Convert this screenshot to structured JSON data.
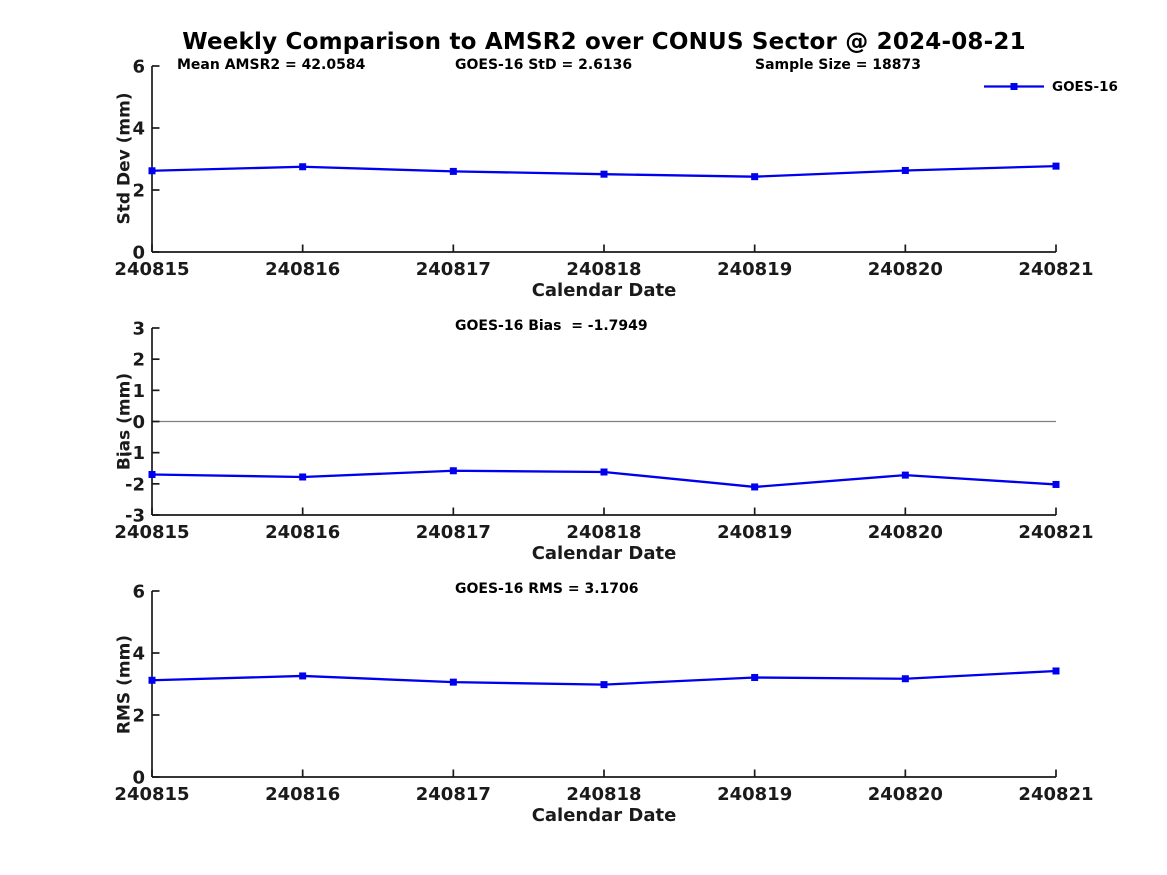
{
  "figure_title": "Weekly Comparison to AMSR2 over CONUS Sector @ 2024-08-21",
  "accent_color": "#0000EE",
  "axis_color": "#1a1a1a",
  "zero_line_color": "#808080",
  "chart_data": [
    {
      "type": "line",
      "name": "std-dev",
      "title": "Weekly Comparison to AMSR2 over CONUS Sector @ 2024-08-21",
      "ylabel": "Std Dev (mm)",
      "xlabel": "Calendar Date",
      "categories": [
        "240815",
        "240816",
        "240817",
        "240818",
        "240819",
        "240820",
        "240821"
      ],
      "series": [
        {
          "name": "GOES-16",
          "color": "#0000EE",
          "marker": "square",
          "values": [
            2.62,
            2.75,
            2.6,
            2.51,
            2.43,
            2.63,
            2.77
          ]
        }
      ],
      "ylim": [
        0,
        6
      ],
      "yticks": [
        0,
        2,
        4,
        6
      ],
      "grid": false,
      "zero_line": false,
      "stats": [
        "Mean AMSR2 = 42.0584",
        "GOES-16 StD = 2.6136",
        "Sample Size = 18873"
      ],
      "legend": {
        "label": "GOES-16",
        "position": "top-right"
      }
    },
    {
      "type": "line",
      "name": "bias",
      "title": "",
      "ylabel": "Bias (mm)",
      "xlabel": "Calendar Date",
      "categories": [
        "240815",
        "240816",
        "240817",
        "240818",
        "240819",
        "240820",
        "240821"
      ],
      "series": [
        {
          "name": "GOES-16",
          "color": "#0000EE",
          "marker": "square",
          "values": [
            -1.7,
            -1.78,
            -1.58,
            -1.62,
            -2.1,
            -1.72,
            -2.02
          ]
        }
      ],
      "ylim": [
        -3,
        3
      ],
      "yticks": [
        -3,
        -2,
        -1,
        0,
        1,
        2,
        3
      ],
      "grid": false,
      "zero_line": true,
      "stats": [
        "GOES-16 Bias  = -1.7949"
      ]
    },
    {
      "type": "line",
      "name": "rms",
      "title": "",
      "ylabel": "RMS (mm)",
      "xlabel": "Calendar Date",
      "categories": [
        "240815",
        "240816",
        "240817",
        "240818",
        "240819",
        "240820",
        "240821"
      ],
      "series": [
        {
          "name": "GOES-16",
          "color": "#0000EE",
          "marker": "square",
          "values": [
            3.12,
            3.26,
            3.06,
            2.98,
            3.21,
            3.17,
            3.42
          ]
        }
      ],
      "ylim": [
        0,
        6
      ],
      "yticks": [
        0,
        2,
        4,
        6
      ],
      "grid": false,
      "zero_line": false,
      "stats": [
        "GOES-16 RMS = 3.1706"
      ]
    }
  ]
}
